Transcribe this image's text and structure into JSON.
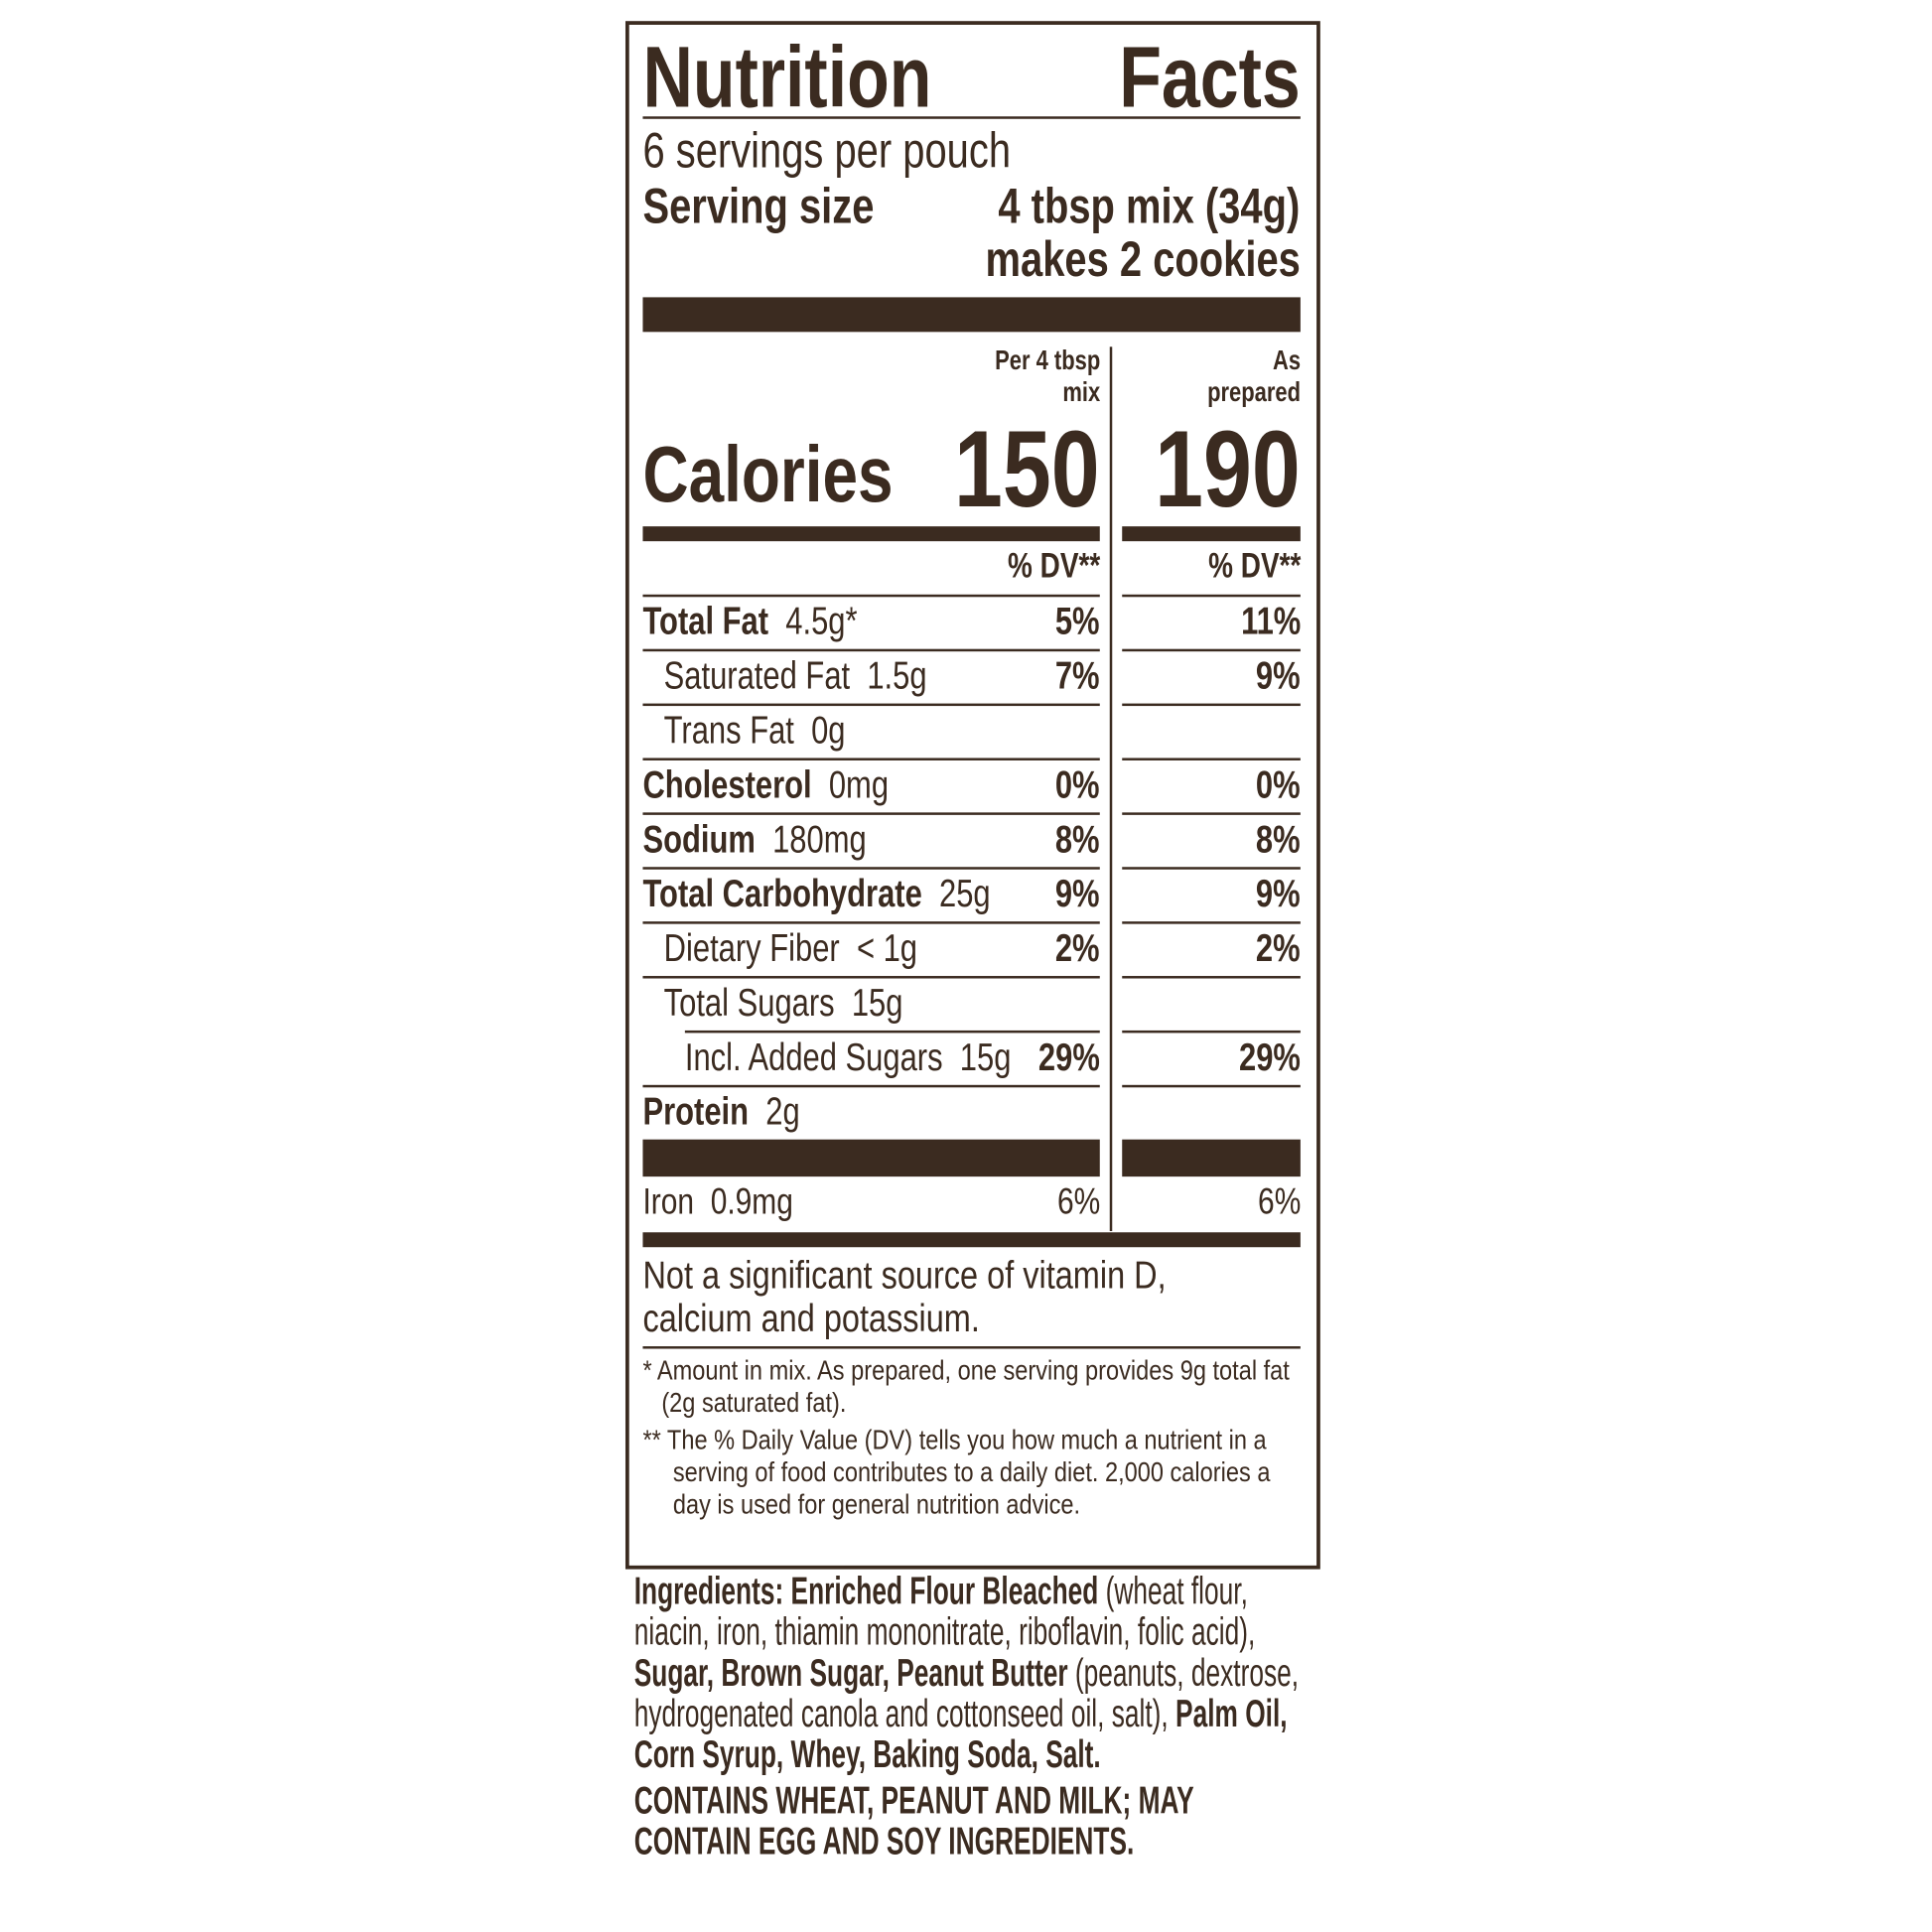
{
  "title": "Nutrition Facts",
  "title_words": [
    "Nutrition",
    "Facts"
  ],
  "servings": "6 servings per pouch",
  "serving_size_label": "Serving size",
  "serving_size_value": "4 tbsp mix (34g)",
  "serving_size_note": "makes 2 cookies",
  "col1_header": [
    "Per 4 tbsp",
    "mix"
  ],
  "col2_header": [
    "As",
    "prepared"
  ],
  "calories_label": "Calories",
  "calories_mix": "150",
  "calories_prepared": "190",
  "dv_header": "% DV**",
  "rows": [
    {
      "name": "Total Fat",
      "amount": "4.5g*",
      "dv1": "5%",
      "dv2": "11%"
    },
    {
      "name": "Saturated Fat",
      "amount": "1.5g",
      "dv1": "7%",
      "dv2": "9%"
    },
    {
      "name": "Trans Fat",
      "amount": "0g",
      "dv1": "",
      "dv2": ""
    },
    {
      "name": "Cholesterol",
      "amount": "0mg",
      "dv1": "0%",
      "dv2": "0%"
    },
    {
      "name": "Sodium",
      "amount": "180mg",
      "dv1": "8%",
      "dv2": "8%"
    },
    {
      "name": "Total Carbohydrate",
      "amount": "25g",
      "dv1": "9%",
      "dv2": "9%"
    },
    {
      "name": "Dietary Fiber",
      "amount": "< 1g",
      "dv1": "2%",
      "dv2": "2%"
    },
    {
      "name": "Total Sugars",
      "amount": "15g",
      "dv1": "",
      "dv2": ""
    },
    {
      "name": "Incl. Added Sugars",
      "amount": "15g",
      "dv1": "29%",
      "dv2": "29%"
    },
    {
      "name": "Protein",
      "amount": "2g",
      "dv1": "",
      "dv2": ""
    }
  ],
  "iron": {
    "name": "Iron",
    "amount": "0.9mg",
    "dv1": "6%",
    "dv2": "6%"
  },
  "not_significant": [
    "Not a significant source of vitamin D,",
    "calcium and potassium."
  ],
  "footnote1": "* Amount in mix. As prepared, one serving provides 9g total fat (2g saturated fat).",
  "footnote2": "** The % Daily Value (DV) tells you how much a nutrient in a serving of food contributes to a daily diet. 2,000 calories a day is used for general nutrition advice.",
  "ingredients": {
    "label": "Ingredients:",
    "parts": [
      {
        "t": "Enriched Flour Bleached",
        "bold": true
      },
      {
        "t": " (wheat flour, niacin, iron, thiamin mononitrate, riboflavin, folic acid), ",
        "bold": false
      },
      {
        "t": "Sugar, Brown Sugar, Peanut Butter",
        "bold": true
      },
      {
        "t": " (peanuts, dextrose, hydrogenated canola and cottonseed oil, salt), ",
        "bold": false
      },
      {
        "t": "Palm Oil, Corn Syrup, Whey, Baking Soda, Salt.",
        "bold": true
      }
    ]
  },
  "allergens": "CONTAINS WHEAT, PEANUT AND MILK; MAY CONTAIN EGG AND SOY INGREDIENTS.",
  "colors": {
    "ink": "#3b2b20",
    "background": "#ffffff"
  }
}
